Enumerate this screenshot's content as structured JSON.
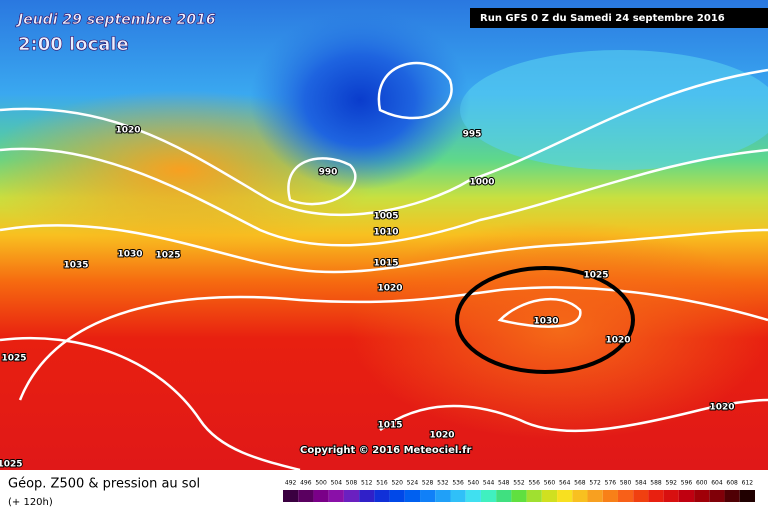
{
  "header": {
    "date": "Jeudi 29 septembre 2016",
    "time": "2:00 locale",
    "run": "Run GFS 0 Z du Samedi 24 septembre 2016"
  },
  "isobar_labels": [
    "1020",
    "990",
    "995",
    "1000",
    "1005",
    "1010",
    "1015",
    "1020",
    "1035",
    "1030",
    "1025",
    "1025",
    "1030",
    "1020",
    "1025",
    "1015",
    "1020",
    "1020",
    "1025"
  ],
  "copyright": "Copyright © 2016 Meteociel.fr",
  "footer": {
    "title": "Géop. Z500 & pression au sol",
    "lead": "(+ 120h)"
  },
  "scale": {
    "labels": [
      "492",
      "496",
      "500",
      "504",
      "508",
      "512",
      "516",
      "520",
      "524",
      "528",
      "532",
      "536",
      "540",
      "544",
      "548",
      "552",
      "556",
      "560",
      "564",
      "568",
      "572",
      "576",
      "580",
      "584",
      "588",
      "592",
      "596",
      "600",
      "604",
      "608",
      "612"
    ]
  }
}
